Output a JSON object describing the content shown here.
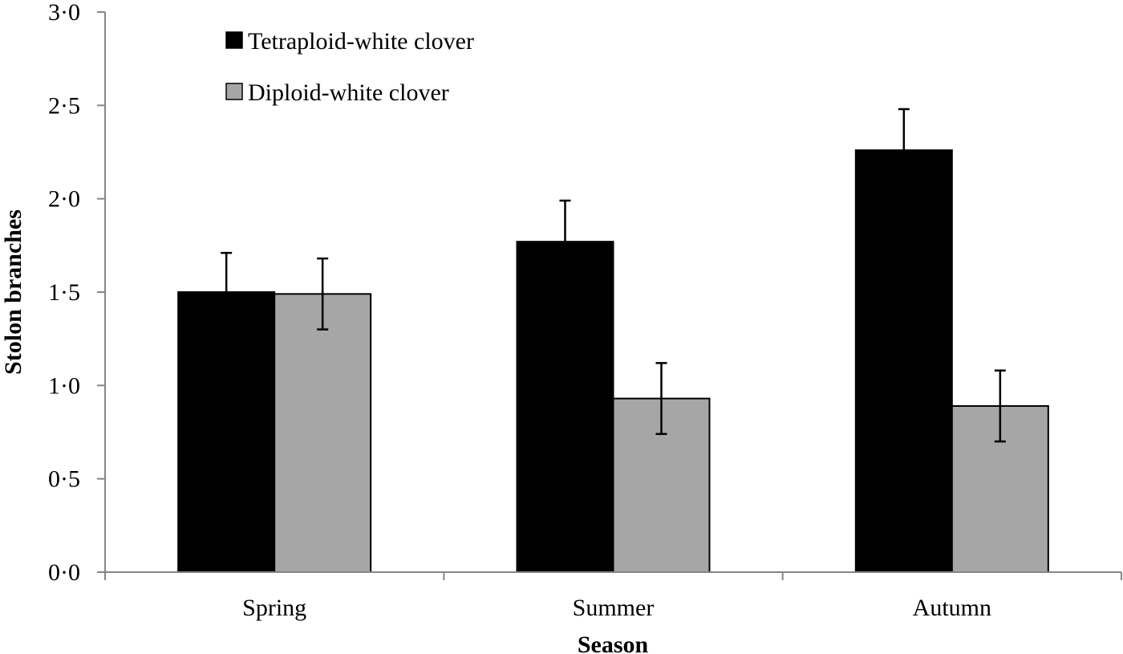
{
  "chart_data": {
    "type": "bar",
    "title": "",
    "xlabel": "Season",
    "ylabel": "Stolon branches",
    "categories": [
      "Spring",
      "Summer",
      "Autumn"
    ],
    "series": [
      {
        "name": "Tetraploid-white clover",
        "color": "#000000",
        "values": [
          1.5,
          1.77,
          2.26
        ],
        "error": [
          0.21,
          0.22,
          0.22
        ]
      },
      {
        "name": "Diploid-white clover",
        "color": "#a6a6a6",
        "values": [
          1.49,
          0.93,
          0.89
        ],
        "error": [
          0.19,
          0.19,
          0.19
        ]
      }
    ],
    "ylim": [
      0,
      3.0
    ],
    "yticks": [
      0,
      0.5,
      1.0,
      1.5,
      2.0,
      2.5,
      3.0
    ],
    "ytick_labels": [
      "0·0",
      "0·5",
      "1·0",
      "1·5",
      "2·0",
      "2·5",
      "3·0"
    ],
    "grid": false,
    "legend_position": "upper-left-inside",
    "error_bars": true
  }
}
